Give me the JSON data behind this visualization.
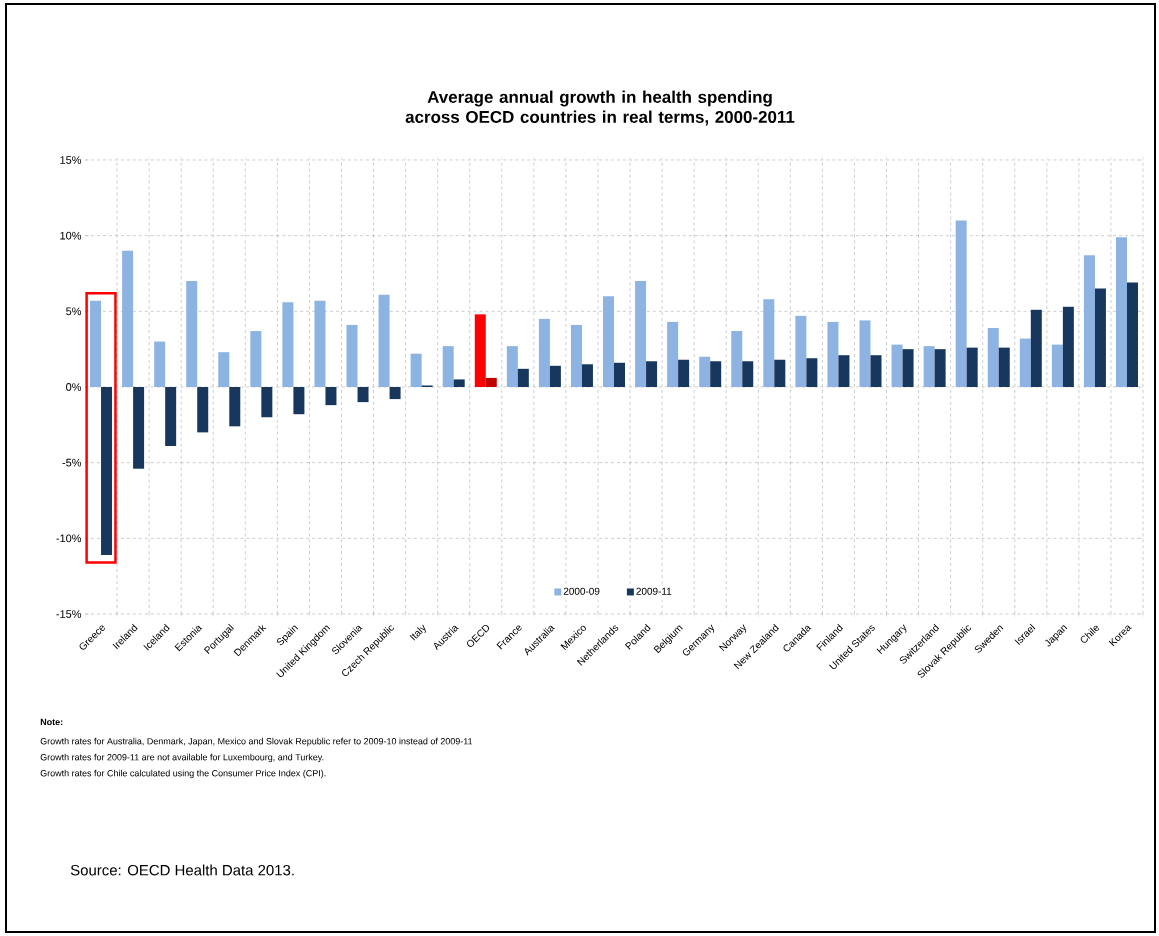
{
  "chart_data": {
    "type": "bar",
    "title": "Average annual growth in health spending across OECD countries in real terms, 2000-2011",
    "categories": [
      "Greece",
      "Ireland",
      "Iceland",
      "Estonia",
      "Portugal",
      "Denmark",
      "Spain",
      "United Kingdom",
      "Slovenia",
      "Czech Republic",
      "Italy",
      "Austria",
      "OECD",
      "France",
      "Australia",
      "Mexico",
      "Netherlands",
      "Poland",
      "Belgium",
      "Germany",
      "Norway",
      "New Zealand",
      "Canada",
      "Finland",
      "United States",
      "Hungary",
      "Switzerland",
      "Slovak Republic",
      "Sweden",
      "Israel",
      "Japan",
      "Chile",
      "Korea"
    ],
    "series": [
      {
        "name": "2000-09",
        "color": "#8db3e2",
        "colors": [
          "#8db3e2",
          "#8db3e2",
          "#8db3e2",
          "#8db3e2",
          "#8db3e2",
          "#8db3e2",
          "#8db3e2",
          "#8db3e2",
          "#8db3e2",
          "#8db3e2",
          "#8db3e2",
          "#8db3e2",
          "#ff0000",
          "#8db3e2",
          "#8db3e2",
          "#8db3e2",
          "#8db3e2",
          "#8db3e2",
          "#8db3e2",
          "#8db3e2",
          "#8db3e2",
          "#8db3e2",
          "#8db3e2",
          "#8db3e2",
          "#8db3e2",
          "#8db3e2",
          "#8db3e2",
          "#8db3e2",
          "#8db3e2",
          "#8db3e2",
          "#8db3e2",
          "#8db3e2",
          "#8db3e2"
        ],
        "values": [
          5.7,
          9.0,
          3.0,
          7.0,
          2.3,
          3.7,
          5.6,
          5.7,
          4.1,
          6.1,
          2.2,
          2.7,
          4.8,
          2.7,
          4.5,
          4.1,
          6.0,
          7.0,
          4.3,
          2.0,
          3.7,
          5.8,
          4.7,
          4.3,
          4.4,
          2.8,
          2.7,
          11.0,
          3.9,
          3.2,
          2.8,
          8.7,
          9.9
        ]
      },
      {
        "name": "2009-11",
        "color": "#17375e",
        "colors": [
          "#17375e",
          "#17375e",
          "#17375e",
          "#17375e",
          "#17375e",
          "#17375e",
          "#17375e",
          "#17375e",
          "#17375e",
          "#17375e",
          "#17375e",
          "#17375e",
          "#c00000",
          "#17375e",
          "#17375e",
          "#17375e",
          "#17375e",
          "#17375e",
          "#17375e",
          "#17375e",
          "#17375e",
          "#17375e",
          "#17375e",
          "#17375e",
          "#17375e",
          "#17375e",
          "#17375e",
          "#17375e",
          "#17375e",
          "#17375e",
          "#17375e",
          "#17375e",
          "#17375e"
        ],
        "values": [
          -11.1,
          -5.4,
          -3.9,
          -3.0,
          -2.6,
          -2.0,
          -1.8,
          -1.2,
          -1.0,
          -0.8,
          0.1,
          0.5,
          0.6,
          1.2,
          1.4,
          1.5,
          1.6,
          1.7,
          1.8,
          1.7,
          1.7,
          1.8,
          1.9,
          2.1,
          2.1,
          2.5,
          2.5,
          2.6,
          2.6,
          5.1,
          5.3,
          6.5,
          6.9
        ]
      }
    ],
    "ylim": [
      -15,
      15
    ],
    "yticks": [
      {
        "value": -15,
        "label": "-15%"
      },
      {
        "value": -10,
        "label": "-10%"
      },
      {
        "value": -5,
        "label": "-5%"
      },
      {
        "value": 0,
        "label": "0%"
      },
      {
        "value": 5,
        "label": "5%"
      },
      {
        "value": 10,
        "label": "10%"
      },
      {
        "value": 15,
        "label": "15%"
      }
    ],
    "grid": true,
    "legend": "bottom",
    "annotations": [
      "Note:",
      "Growth rates for Australia, Denmark, Japan, Mexico and Slovak Republic refer to 2009-10 instead of 2009-11",
      "Growth rates for 2009-11 are not available for Luxembourg, and Turkey.",
      "Growth rates for Chile calculated using the Consumer Price Index (CPI).",
      "Source: OECD Health Data 2013."
    ]
  }
}
